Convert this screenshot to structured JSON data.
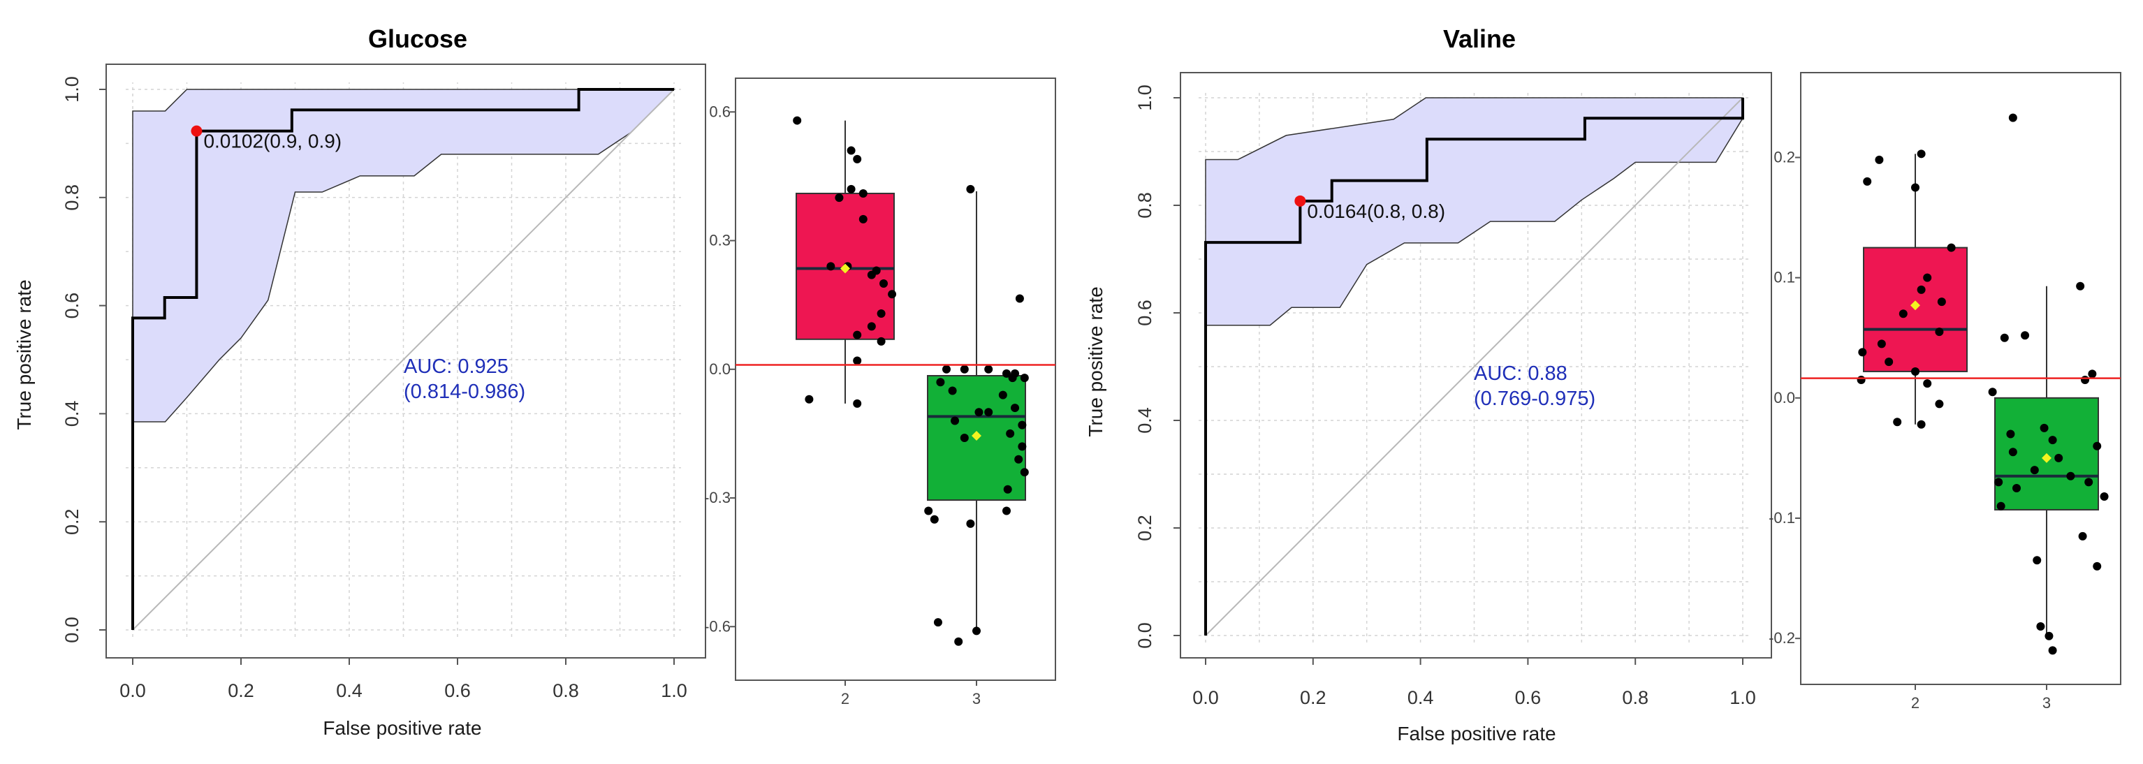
{
  "colors": {
    "band_fill": "#dcdcfb",
    "roc_line": "#000000",
    "diagonal": "#b8b8b8",
    "cutoff_point": "#ee1111",
    "box_high": "#ee1652",
    "box_low": "#12b037",
    "threshold_line": "#ee2222",
    "mean_marker": "#f3f320",
    "auc_text": "#1f2fb8"
  },
  "chart_data": [
    {
      "type": "line",
      "title": "Glucose",
      "xlabel": "False positive rate",
      "ylabel": "True positive rate",
      "xlim": [
        0,
        1
      ],
      "ylim": [
        0,
        1
      ],
      "xticks": [
        "0.0",
        "0.2",
        "0.4",
        "0.6",
        "0.8",
        "1.0"
      ],
      "yticks": [
        "0.0",
        "0.2",
        "0.4",
        "0.6",
        "0.8",
        "1.0"
      ],
      "grid": true,
      "roc": [
        [
          0,
          0
        ],
        [
          0,
          0.577
        ],
        [
          0.059,
          0.577
        ],
        [
          0.059,
          0.615
        ],
        [
          0.118,
          0.615
        ],
        [
          0.118,
          0.923
        ],
        [
          0.294,
          0.923
        ],
        [
          0.294,
          0.962
        ],
        [
          0.824,
          0.962
        ],
        [
          0.824,
          1
        ],
        [
          1,
          1
        ]
      ],
      "ci_upper": [
        [
          0,
          0.96
        ],
        [
          0.06,
          0.96
        ],
        [
          0.1,
          1
        ],
        [
          0.94,
          1
        ],
        [
          1,
          1
        ]
      ],
      "ci_lower": [
        [
          0,
          0.385
        ],
        [
          0.06,
          0.385
        ],
        [
          0.1,
          0.43
        ],
        [
          0.16,
          0.5
        ],
        [
          0.2,
          0.54
        ],
        [
          0.25,
          0.61
        ],
        [
          0.3,
          0.81
        ],
        [
          0.35,
          0.81
        ],
        [
          0.42,
          0.84
        ],
        [
          0.52,
          0.84
        ],
        [
          0.57,
          0.88
        ],
        [
          0.86,
          0.88
        ],
        [
          0.92,
          0.92
        ],
        [
          1,
          1
        ]
      ],
      "cutoff": {
        "x": 0.118,
        "y": 0.923,
        "label": "0.0102(0.9, 0.9)"
      },
      "auc_label": "AUC: 0.925",
      "auc_ci": "(0.814-0.986)"
    },
    {
      "type": "box",
      "categories": [
        "2",
        "3"
      ],
      "ylim": [
        -0.65,
        0.62
      ],
      "yticks": [
        "0.6",
        "0.3",
        "0.0",
        "-0.3",
        "-0.6"
      ],
      "threshold": 0.0102,
      "boxes": [
        {
          "q1": 0.07,
          "median": 0.235,
          "q3": 0.41,
          "whisker_low": -0.08,
          "whisker_high": 0.58,
          "mean": 0.235
        },
        {
          "q1": -0.305,
          "median": -0.11,
          "q3": -0.015,
          "whisker_low": -0.615,
          "whisker_high": 0.415,
          "mean": -0.155
        }
      ],
      "points": [
        [
          [
            0.58,
            -0.4
          ],
          [
            0.51,
            0.05
          ],
          [
            0.49,
            0.1
          ],
          [
            0.42,
            0.05
          ],
          [
            0.41,
            0.15
          ],
          [
            0.4,
            -0.05
          ],
          [
            0.35,
            0.15
          ],
          [
            0.24,
            -0.12
          ],
          [
            0.24,
            0.02
          ],
          [
            0.23,
            0.26
          ],
          [
            0.22,
            0.22
          ],
          [
            0.2,
            0.32
          ],
          [
            0.175,
            0.39
          ],
          [
            0.13,
            0.3
          ],
          [
            0.1,
            0.22
          ],
          [
            0.08,
            0.1
          ],
          [
            0.065,
            0.3
          ],
          [
            0.02,
            0.1
          ],
          [
            -0.07,
            -0.3
          ],
          [
            -0.08,
            0.1
          ]
        ],
        [
          [
            0.42,
            -0.05
          ],
          [
            0.165,
            0.36
          ],
          [
            0,
            -0.25
          ],
          [
            0,
            -0.1
          ],
          [
            0,
            0.1
          ],
          [
            -0.01,
            0.25
          ],
          [
            -0.01,
            0.32
          ],
          [
            -0.02,
            0.4
          ],
          [
            -0.02,
            0.3
          ],
          [
            -0.03,
            -0.3
          ],
          [
            -0.05,
            -0.2
          ],
          [
            -0.06,
            0.22
          ],
          [
            -0.09,
            0.32
          ],
          [
            -0.1,
            0.02
          ],
          [
            -0.1,
            0.1
          ],
          [
            -0.12,
            -0.18
          ],
          [
            -0.13,
            0.38
          ],
          [
            -0.15,
            0.28
          ],
          [
            -0.16,
            -0.1
          ],
          [
            -0.18,
            0.38
          ],
          [
            -0.21,
            0.35
          ],
          [
            -0.24,
            0.4
          ],
          [
            -0.28,
            0.26
          ],
          [
            -0.33,
            -0.4
          ],
          [
            -0.33,
            0.25
          ],
          [
            -0.35,
            -0.35
          ],
          [
            -0.36,
            -0.05
          ],
          [
            -0.59,
            -0.32
          ],
          [
            -0.61,
            0.0
          ],
          [
            -0.635,
            -0.15
          ]
        ]
      ]
    },
    {
      "type": "line",
      "title": "Valine",
      "xlabel": "False positive rate",
      "ylabel": "True positive rate",
      "xlim": [
        0,
        1
      ],
      "ylim": [
        0,
        1
      ],
      "xticks": [
        "0.0",
        "0.2",
        "0.4",
        "0.6",
        "0.8",
        "1.0"
      ],
      "yticks": [
        "0.0",
        "0.2",
        "0.4",
        "0.6",
        "0.8",
        "1.0"
      ],
      "grid": true,
      "roc": [
        [
          0,
          0
        ],
        [
          0,
          0.731
        ],
        [
          0.176,
          0.731
        ],
        [
          0.176,
          0.808
        ],
        [
          0.235,
          0.808
        ],
        [
          0.235,
          0.846
        ],
        [
          0.412,
          0.846
        ],
        [
          0.412,
          0.923
        ],
        [
          0.706,
          0.923
        ],
        [
          0.706,
          0.962
        ],
        [
          1,
          0.962
        ],
        [
          1,
          1
        ]
      ],
      "ci_upper": [
        [
          0,
          0.885
        ],
        [
          0.06,
          0.885
        ],
        [
          0.15,
          0.93
        ],
        [
          0.35,
          0.96
        ],
        [
          0.41,
          1
        ],
        [
          1,
          1
        ]
      ],
      "ci_lower": [
        [
          0,
          0.577
        ],
        [
          0.12,
          0.577
        ],
        [
          0.16,
          0.61
        ],
        [
          0.25,
          0.61
        ],
        [
          0.3,
          0.69
        ],
        [
          0.37,
          0.73
        ],
        [
          0.47,
          0.73
        ],
        [
          0.53,
          0.77
        ],
        [
          0.65,
          0.77
        ],
        [
          0.7,
          0.81
        ],
        [
          0.76,
          0.85
        ],
        [
          0.8,
          0.88
        ],
        [
          0.95,
          0.88
        ],
        [
          1,
          0.962
        ]
      ],
      "cutoff": {
        "x": 0.176,
        "y": 0.808,
        "label": "0.0164(0.8, 0.8)"
      },
      "auc_label": "AUC: 0.88",
      "auc_ci": "(0.769-0.975)"
    },
    {
      "type": "box",
      "categories": [
        "2",
        "3"
      ],
      "ylim": [
        -0.215,
        0.245
      ],
      "yticks": [
        "0.2",
        "0.1",
        "0.0",
        "-0.1",
        "-0.2"
      ],
      "threshold": 0.0164,
      "boxes": [
        {
          "q1": 0.022,
          "median": 0.057,
          "q3": 0.125,
          "whisker_low": -0.022,
          "whisker_high": 0.203,
          "mean": 0.077
        },
        {
          "q1": -0.093,
          "median": -0.065,
          "q3": 0.0,
          "whisker_low": -0.2,
          "whisker_high": 0.093,
          "mean": -0.05
        }
      ],
      "points": [
        [
          [
            0.203,
            0.05
          ],
          [
            0.198,
            -0.3
          ],
          [
            0.18,
            -0.4
          ],
          [
            0.175,
            0.0
          ],
          [
            0.125,
            0.3
          ],
          [
            0.1,
            0.1
          ],
          [
            0.09,
            0.05
          ],
          [
            0.08,
            0.22
          ],
          [
            0.07,
            -0.1
          ],
          [
            0.055,
            0.2
          ],
          [
            0.045,
            -0.28
          ],
          [
            0.038,
            -0.44
          ],
          [
            0.03,
            -0.22
          ],
          [
            0.022,
            0.0
          ],
          [
            0.015,
            -0.45
          ],
          [
            0.012,
            0.1
          ],
          [
            -0.005,
            0.2
          ],
          [
            -0.02,
            -0.15
          ],
          [
            -0.022,
            0.05
          ]
        ],
        [
          [
            0.233,
            -0.28
          ],
          [
            0.093,
            0.28
          ],
          [
            0.052,
            -0.18
          ],
          [
            0.05,
            -0.35
          ],
          [
            0.02,
            0.38
          ],
          [
            0.015,
            0.32
          ],
          [
            0.005,
            -0.45
          ],
          [
            -0.025,
            -0.02
          ],
          [
            -0.03,
            -0.3
          ],
          [
            -0.035,
            0.05
          ],
          [
            -0.04,
            0.42
          ],
          [
            -0.045,
            -0.28
          ],
          [
            -0.05,
            0.1
          ],
          [
            -0.06,
            -0.1
          ],
          [
            -0.065,
            0.2
          ],
          [
            -0.07,
            -0.4
          ],
          [
            -0.07,
            0.35
          ],
          [
            -0.075,
            -0.25
          ],
          [
            -0.082,
            0.48
          ],
          [
            -0.09,
            -0.38
          ],
          [
            -0.115,
            0.3
          ],
          [
            -0.135,
            -0.08
          ],
          [
            -0.14,
            0.42
          ],
          [
            -0.19,
            -0.05
          ],
          [
            -0.198,
            0.02
          ],
          [
            -0.21,
            0.05
          ]
        ]
      ]
    }
  ]
}
